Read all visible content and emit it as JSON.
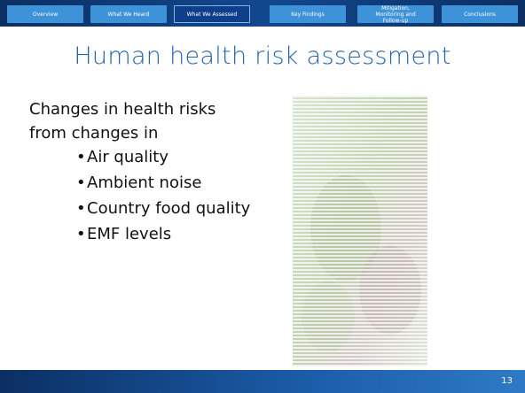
{
  "nav": {
    "tabs": [
      "Overview",
      "What We Heard",
      "What We Assessed",
      "Key Findings",
      "Mitigation, Monitoring and Follow-up",
      "Conclusions"
    ],
    "active": 2
  },
  "title": "Human health risk assessment",
  "intro": [
    "Changes in health risks",
    "from changes in"
  ],
  "bullets": [
    "Air quality",
    "Ambient noise",
    "Country food quality",
    "EMF levels"
  ],
  "page_number": "13"
}
